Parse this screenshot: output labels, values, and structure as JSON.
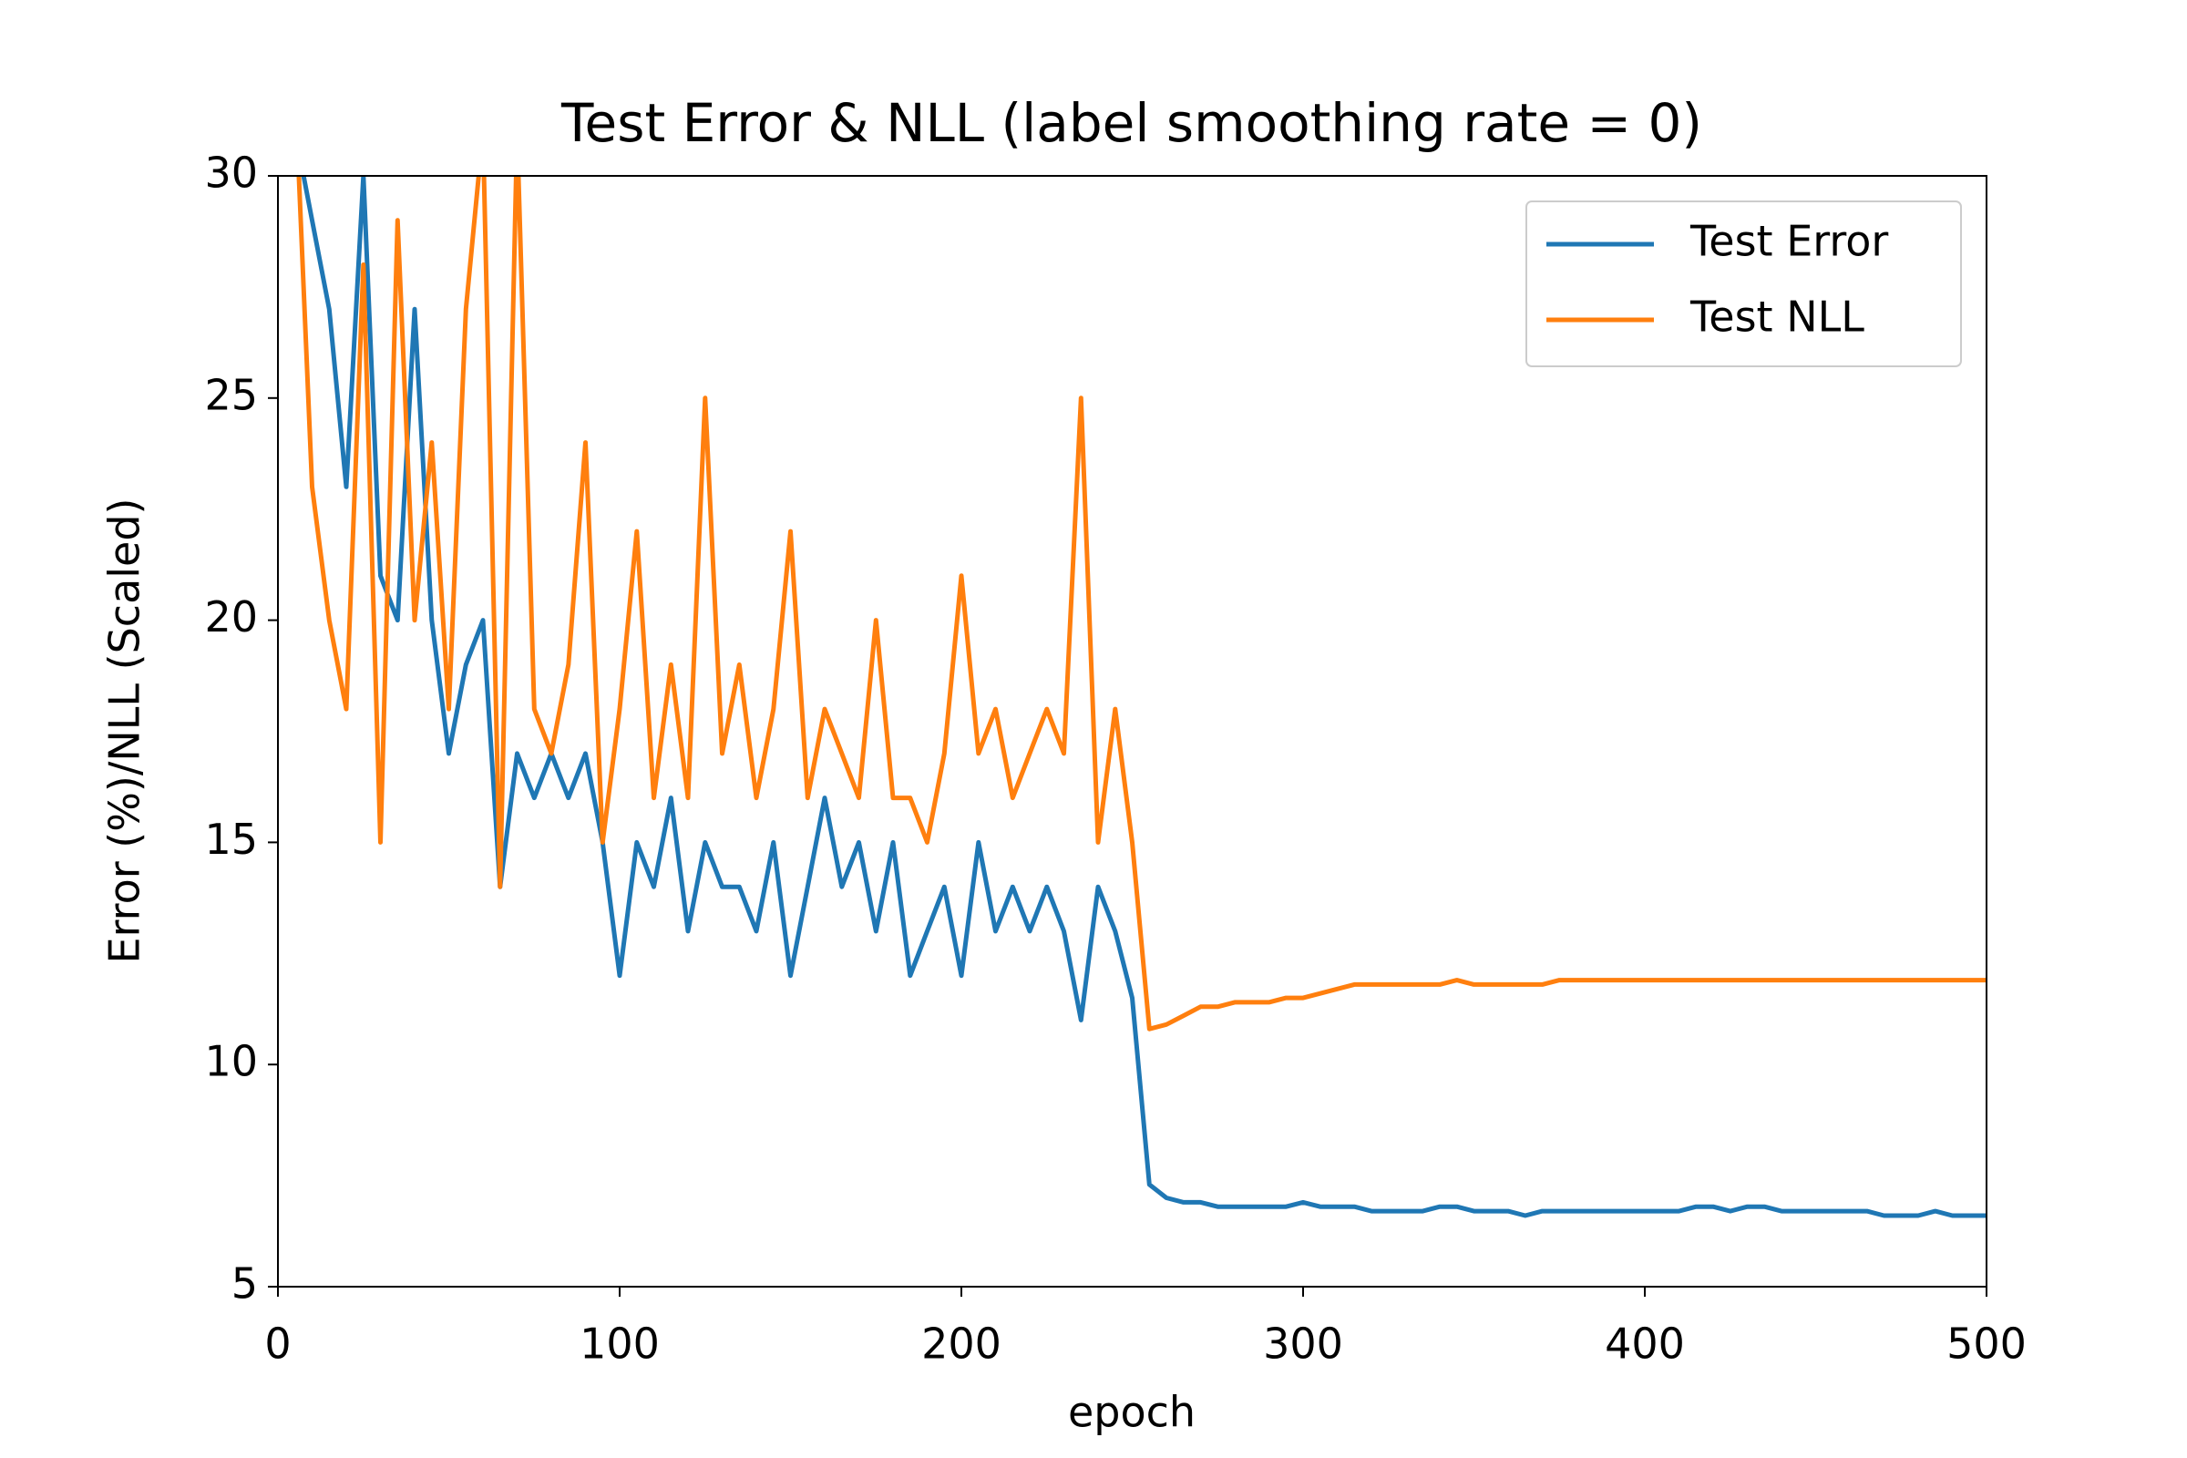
{
  "chart_data": {
    "type": "line",
    "title": "Test Error & NLL (label smoothing rate = 0)",
    "xlabel": "epoch",
    "ylabel": "Error (%)/NLL (Scaled)",
    "x": [
      5,
      10,
      15,
      20,
      25,
      30,
      35,
      40,
      45,
      50,
      55,
      60,
      65,
      70,
      75,
      80,
      85,
      90,
      95,
      100,
      105,
      110,
      115,
      120,
      125,
      130,
      135,
      140,
      145,
      150,
      155,
      160,
      165,
      170,
      175,
      180,
      185,
      190,
      195,
      200,
      205,
      210,
      215,
      220,
      225,
      230,
      235,
      240,
      245,
      250,
      255,
      260,
      265,
      270,
      275,
      280,
      285,
      290,
      295,
      300,
      305,
      310,
      315,
      320,
      325,
      330,
      335,
      340,
      345,
      350,
      355,
      360,
      365,
      370,
      375,
      380,
      385,
      390,
      395,
      400,
      405,
      410,
      415,
      420,
      425,
      430,
      435,
      440,
      445,
      450,
      455,
      460,
      465,
      470,
      475,
      480,
      485,
      490,
      495,
      500
    ],
    "series": [
      {
        "name": "Test Error",
        "color": "#1f77b4",
        "values": [
          31,
          29,
          27,
          23,
          30,
          21,
          20,
          27,
          20,
          17,
          19,
          20,
          14,
          17,
          16,
          17,
          16,
          17,
          15,
          12,
          15,
          14,
          16,
          13,
          15,
          14,
          14,
          13,
          15,
          12,
          14,
          16,
          14,
          15,
          13,
          15,
          12,
          13,
          14,
          12,
          15,
          13,
          14,
          13,
          14,
          13,
          11,
          14,
          13,
          11.5,
          7.3,
          7.0,
          6.9,
          6.9,
          6.8,
          6.8,
          6.8,
          6.8,
          6.8,
          6.9,
          6.8,
          6.8,
          6.8,
          6.7,
          6.7,
          6.7,
          6.7,
          6.8,
          6.8,
          6.7,
          6.7,
          6.7,
          6.6,
          6.7,
          6.7,
          6.7,
          6.7,
          6.7,
          6.7,
          6.7,
          6.7,
          6.7,
          6.8,
          6.8,
          6.7,
          6.8,
          6.8,
          6.7,
          6.7,
          6.7,
          6.7,
          6.7,
          6.7,
          6.6,
          6.6,
          6.6,
          6.7,
          6.6,
          6.6,
          6.6
        ]
      },
      {
        "name": "Test NLL",
        "color": "#ff7f0e",
        "values": [
          32,
          23,
          20,
          18,
          28,
          15,
          29,
          20,
          24,
          18,
          27,
          31,
          14,
          31,
          18,
          17,
          19,
          24,
          15,
          18,
          22,
          16,
          19,
          16,
          25,
          17,
          19,
          16,
          18,
          22,
          16,
          18,
          17,
          16,
          20,
          16,
          16,
          15,
          17,
          21,
          17,
          18,
          16,
          17,
          18,
          17,
          25,
          15,
          18,
          15,
          10.8,
          10.9,
          11.1,
          11.3,
          11.3,
          11.4,
          11.4,
          11.4,
          11.5,
          11.5,
          11.6,
          11.7,
          11.8,
          11.8,
          11.8,
          11.8,
          11.8,
          11.8,
          11.9,
          11.8,
          11.8,
          11.8,
          11.8,
          11.8,
          11.9,
          11.9,
          11.9,
          11.9,
          11.9,
          11.9,
          11.9,
          11.9,
          11.9,
          11.9,
          11.9,
          11.9,
          11.9,
          11.9,
          11.9,
          11.9,
          11.9,
          11.9,
          11.9,
          11.9,
          11.9,
          11.9,
          11.9,
          11.9,
          11.9,
          11.9
        ]
      }
    ],
    "xlim": [
      0,
      500
    ],
    "xticks": [
      0,
      100,
      200,
      300,
      400,
      500
    ],
    "ylim": [
      5,
      30
    ],
    "yticks": [
      5,
      10,
      15,
      20,
      25,
      30
    ],
    "legend": "upper right",
    "grid": false
  }
}
